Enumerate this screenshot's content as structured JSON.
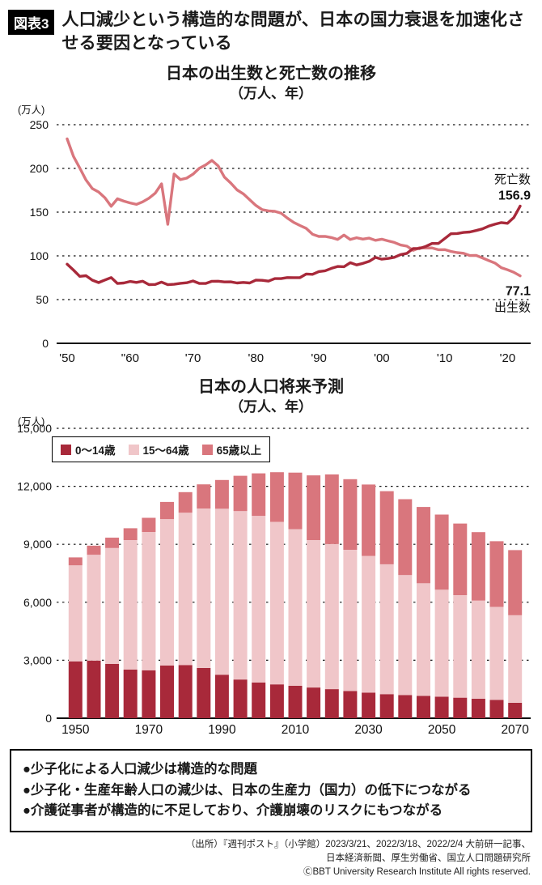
{
  "header": {
    "badge": "図表3",
    "title": "人口減少という構造的な問題が、日本の国力衰退を加速化させる要因となっている"
  },
  "colors": {
    "dark_red": "#a8293a",
    "salmon": "#d9767d",
    "light_pink": "#f0c6c9",
    "axis_black": "#111111"
  },
  "chart_data": [
    {
      "type": "line",
      "title": "日本の出生数と死亡数の推移",
      "subtitle": "（万人、年）",
      "unit_label": "(万人)",
      "ylim": [
        0,
        250
      ],
      "yticks": [
        0,
        50,
        100,
        150,
        200,
        250
      ],
      "grid": "dashed",
      "legend_position": "inline-end-labels",
      "x_start": 1950,
      "x_end": 2022,
      "xtick_years": [
        1950,
        1960,
        1970,
        1980,
        1990,
        2000,
        2010,
        2020
      ],
      "xtick_labels": [
        "'50",
        "''60",
        "'70",
        "'80",
        "'90",
        "'00",
        "'10",
        "'20"
      ],
      "series": [
        {
          "key": "births",
          "name": "出生数",
          "color": "#d9767d",
          "label_position": "below",
          "end_label": "77.1",
          "values": [
            233.8,
            213.8,
            200.5,
            186.8,
            176.9,
            173.1,
            166.5,
            156.7,
            165.3,
            162.6,
            160.6,
            158.9,
            161.8,
            165.9,
            171.7,
            182.4,
            136.1,
            193.6,
            187.2,
            188.9,
            193.4,
            200.1,
            203.9,
            209.2,
            202.9,
            190.1,
            183.3,
            175.5,
            170.9,
            164.3,
            157.7,
            152.9,
            151.5,
            150.9,
            148.9,
            143.2,
            138.3,
            134.7,
            131.4,
            124.7,
            122.2,
            122.3,
            120.9,
            118.8,
            123.8,
            118.7,
            120.7,
            119.2,
            120.3,
            117.8,
            119.1,
            117.1,
            115.4,
            112.4,
            111.1,
            106.3,
            109.3,
            109.0,
            109.1,
            107.0,
            107.1,
            105.1,
            103.7,
            103.0,
            100.4,
            100.6,
            97.7,
            94.6,
            91.8,
            86.5,
            84.1,
            81.2,
            77.1
          ]
        },
        {
          "key": "deaths",
          "name": "死亡数",
          "color": "#a8293a",
          "label_position": "above",
          "end_label": "156.9",
          "values": [
            90.5,
            83.8,
            76.6,
            77.3,
            72.2,
            69.4,
            72.4,
            75.2,
            68.4,
            69.0,
            70.7,
            69.6,
            71.0,
            67.1,
            67.3,
            70.0,
            67.0,
            67.5,
            68.6,
            69.3,
            71.3,
            68.5,
            68.4,
            70.9,
            71.0,
            70.2,
            70.3,
            69.0,
            69.6,
            69.0,
            72.3,
            72.0,
            71.1,
            74.0,
            74.0,
            75.2,
            75.1,
            75.1,
            79.3,
            78.9,
            82.0,
            83.0,
            85.7,
            87.9,
            87.6,
            92.2,
            89.6,
            91.4,
            93.7,
            98.2,
            96.2,
            97.0,
            98.3,
            101.5,
            102.9,
            108.4,
            108.4,
            110.8,
            114.2,
            114.2,
            119.7,
            125.3,
            125.6,
            126.8,
            127.3,
            129.0,
            130.8,
            134.0,
            136.2,
            138.1,
            137.2,
            143.9,
            156.9
          ]
        }
      ]
    },
    {
      "type": "stacked-bar",
      "title": "日本の人口将来予測",
      "subtitle": "（万人、年）",
      "unit_label": "(万人)",
      "ylim": [
        0,
        15000
      ],
      "yticks": [
        0,
        3000,
        6000,
        9000,
        12000,
        15000
      ],
      "ytick_labels": [
        "0",
        "3,000",
        "6,000",
        "9,000",
        "12,000",
        "15,000"
      ],
      "grid": "dashed",
      "legend_position": "top-left",
      "categories": [
        1950,
        1955,
        1960,
        1965,
        1970,
        1975,
        1980,
        1985,
        1990,
        1995,
        2000,
        2005,
        2010,
        2015,
        2020,
        2025,
        2030,
        2035,
        2040,
        2045,
        2050,
        2055,
        2060,
        2065,
        2070
      ],
      "xtick_labels": [
        "1950",
        "1970",
        "1990",
        "2010",
        "2030",
        "2050",
        "2070"
      ],
      "xtick_indices": [
        0,
        4,
        8,
        12,
        16,
        20,
        24
      ],
      "series": [
        {
          "key": "age-0-14",
          "name": "0～14歳",
          "color": "#a8293a",
          "values": [
            2943,
            2980,
            2807,
            2517,
            2482,
            2722,
            2751,
            2603,
            2249,
            2001,
            1847,
            1752,
            1680,
            1589,
            1503,
            1407,
            1321,
            1246,
            1194,
            1155,
            1111,
            1063,
            1011,
            951,
            797
          ]
        },
        {
          "key": "age-15-64",
          "name": "15～64歳",
          "color": "#f0c6c9",
          "values": [
            4966,
            5473,
            6000,
            6693,
            7157,
            7581,
            7884,
            8251,
            8590,
            8716,
            8622,
            8409,
            8103,
            7629,
            7509,
            7310,
            7076,
            6722,
            6213,
            5832,
            5540,
            5307,
            5078,
            4809,
            4535
          ]
        },
        {
          "key": "age-65-plus",
          "name": "65歳以上",
          "color": "#d9767d",
          "values": [
            411,
            475,
            535,
            618,
            733,
            887,
            1065,
            1247,
            1489,
            1826,
            2201,
            2567,
            2925,
            3347,
            3603,
            3653,
            3696,
            3782,
            3928,
            3945,
            3888,
            3704,
            3541,
            3400,
            3367
          ]
        }
      ]
    }
  ],
  "notes": {
    "items": [
      "●少子化による人口減少は構造的な問題",
      "●少子化・生産年齢人口の減少は、日本の生産力（国力）の低下につながる",
      "●介護従事者が構造的に不足しており、介護崩壊のリスクにもつながる"
    ]
  },
  "source": {
    "lines": [
      "（出所）『週刊ポスト』（小学館）2023/3/21、2022/3/18、2022/2/4 大前研一記事、",
      "日本経済新聞、厚生労働省、国立人口問題研究所",
      "ⒸBBT University Research Institute All rights reserved."
    ]
  }
}
